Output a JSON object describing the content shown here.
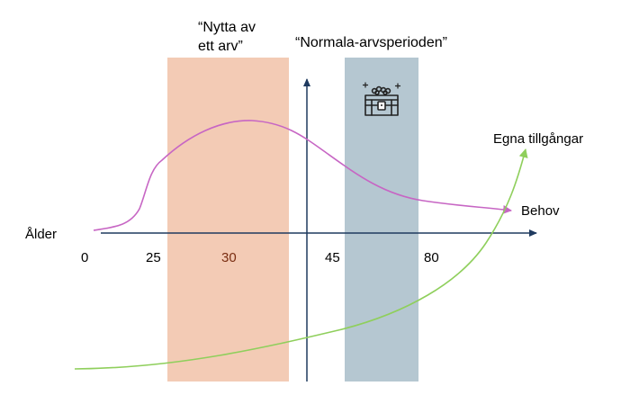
{
  "labels": {
    "title_left_line1": "“Nytta av",
    "title_left_line2": "ett arv”",
    "title_right": "“Normala-arvsperioden”",
    "x_axis": "Ålder",
    "curve_green": "Egna tillgångar",
    "curve_pink": "Behov"
  },
  "ticks": [
    {
      "value": "0",
      "color": "#000000"
    },
    {
      "value": "25",
      "color": "#000000"
    },
    {
      "value": "30",
      "color": "#7a2e12"
    },
    {
      "value": "45",
      "color": "#000000"
    },
    {
      "value": "80",
      "color": "#000000"
    }
  ],
  "icons": {
    "chest": "treasure-chest-icon"
  },
  "colors": {
    "band_left": "#f3cbb5",
    "band_right": "#b5c7d1",
    "axis": "#1f3a5f",
    "curve_pink": "#c766c4",
    "curve_green": "#8fcf5c"
  }
}
